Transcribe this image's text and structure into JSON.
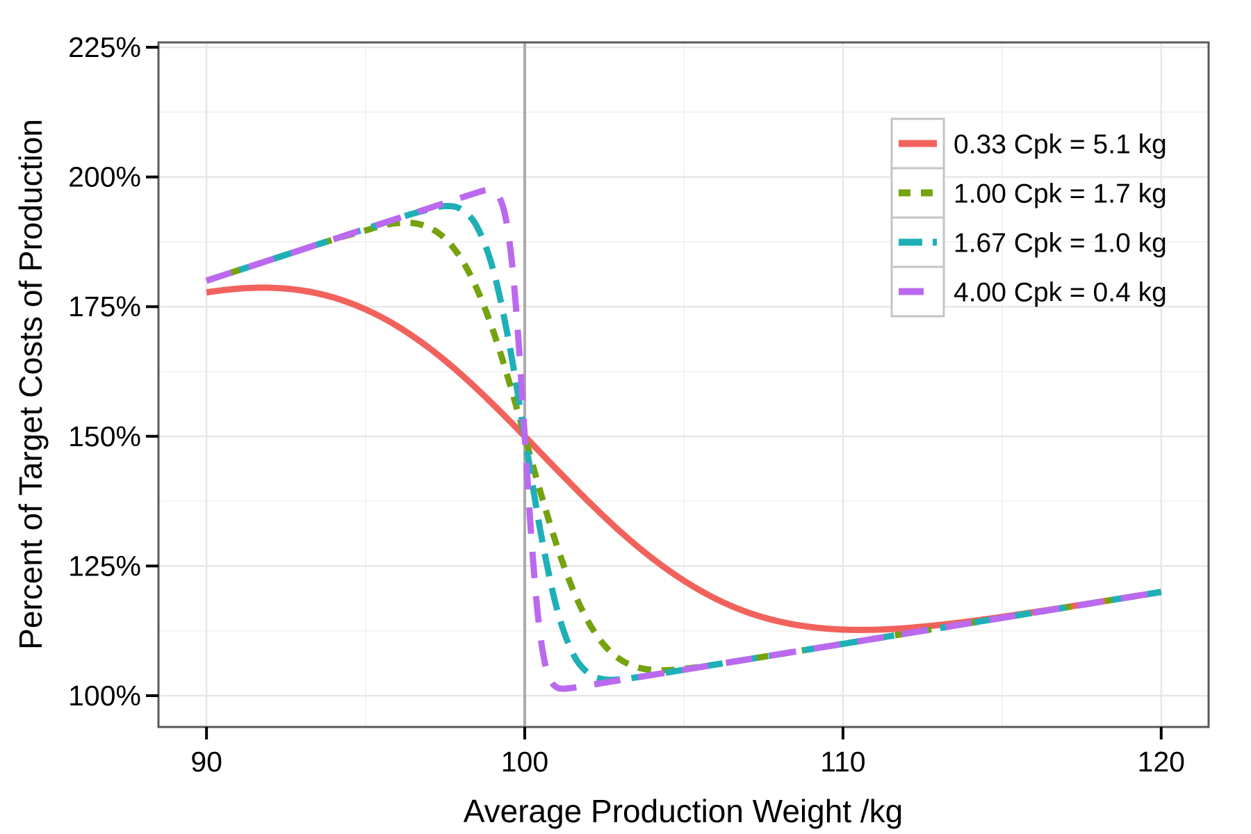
{
  "chart_data": {
    "type": "line",
    "title": "",
    "xlabel": "Average Production Weight /kg",
    "ylabel": "Percent of Target Costs of Production",
    "xlim": [
      88.49,
      121.49
    ],
    "ylim": [
      93.97,
      225.94
    ],
    "x_ticks": [
      {
        "value": 90,
        "label": "90"
      },
      {
        "value": 100,
        "label": "100"
      },
      {
        "value": 110,
        "label": "110"
      },
      {
        "value": 120,
        "label": "120"
      }
    ],
    "y_ticks": [
      {
        "value": 100,
        "label": "100%"
      },
      {
        "value": 125,
        "label": "125%"
      },
      {
        "value": 150,
        "label": "150%"
      },
      {
        "value": 175,
        "label": "175%"
      },
      {
        "value": 200,
        "label": "200%"
      },
      {
        "value": 225,
        "label": "225%"
      }
    ],
    "x_minor": [
      95,
      105,
      115
    ],
    "y_minor": [
      112.5,
      137.5,
      162.5,
      187.5,
      212.5
    ],
    "grid": {
      "major_color": "#e7e7e7",
      "minor_color": "#f3f3f3",
      "major_width": 2.5,
      "minor_width": 2
    },
    "reference_line": {
      "x": 100,
      "color": "#ababab",
      "width": 4
    },
    "panel": {
      "border_color": "#595959",
      "border_width": 3,
      "background": "#ffffff"
    },
    "legend": {
      "position": "top-right-inside",
      "key_fill": "#ffffff",
      "key_border": "#c4c4c4"
    },
    "series": [
      {
        "name": "0.33 Cpk = 5.1 kg",
        "color": "#f2625c",
        "dash": null,
        "points": [
          [
            90,
            177.76
          ],
          [
            91,
            178.47
          ],
          [
            92,
            178.64
          ],
          [
            93,
            178.11
          ],
          [
            94,
            176.75
          ],
          [
            95,
            174.47
          ],
          [
            96,
            171.22
          ],
          [
            97,
            167.01
          ],
          [
            98,
            161.95
          ],
          [
            99,
            156.19
          ],
          [
            100,
            150.0
          ],
          [
            101,
            143.65
          ],
          [
            102,
            137.45
          ],
          [
            103,
            131.65
          ],
          [
            104,
            126.52
          ],
          [
            105,
            122.17
          ],
          [
            106,
            118.69
          ],
          [
            107,
            116.07
          ],
          [
            108,
            114.3
          ],
          [
            109,
            113.23
          ],
          [
            110,
            112.74
          ],
          [
            111,
            112.72
          ],
          [
            112,
            113.04
          ],
          [
            113,
            113.61
          ],
          [
            114,
            114.34
          ],
          [
            115,
            115.19
          ],
          [
            116,
            116.1
          ],
          [
            117,
            117.05
          ],
          [
            118,
            118.03
          ],
          [
            119,
            119.01
          ],
          [
            120,
            120.0
          ]
        ]
      },
      {
        "name": "1.00 Cpk = 1.7 kg",
        "color": "#74a30e",
        "dash": [
          19,
          15
        ],
        "points": [
          [
            90,
            180.0
          ],
          [
            92,
            184.0
          ],
          [
            94,
            187.96
          ],
          [
            95,
            189.69
          ],
          [
            95.5,
            190.61
          ],
          [
            96,
            191.11
          ],
          [
            96.5,
            191.1
          ],
          [
            97,
            190.24
          ],
          [
            97.5,
            188.11
          ],
          [
            98,
            184.27
          ],
          [
            98.5,
            178.4
          ],
          [
            99,
            170.46
          ],
          [
            99.5,
            160.76
          ],
          [
            100,
            150.0
          ],
          [
            100.5,
            139.13
          ],
          [
            101,
            129.1
          ],
          [
            101.5,
            120.67
          ],
          [
            102,
            114.21
          ],
          [
            102.5,
            109.74
          ],
          [
            103,
            106.99
          ],
          [
            103.5,
            105.54
          ],
          [
            104,
            104.97
          ],
          [
            104.5,
            104.92
          ],
          [
            105,
            105.17
          ],
          [
            106,
            106.02
          ],
          [
            108,
            108.0
          ],
          [
            110,
            110.0
          ],
          [
            112,
            112.0
          ],
          [
            115,
            115.0
          ],
          [
            120,
            120.0
          ]
        ]
      },
      {
        "name": "1.67 Cpk = 1.0 kg",
        "color": "#1fb0b7",
        "dash": [
          33,
          17
        ],
        "points": [
          [
            90,
            180.0
          ],
          [
            92,
            184.0
          ],
          [
            94,
            188.0
          ],
          [
            95,
            190.0
          ],
          [
            96,
            191.99
          ],
          [
            96.5,
            192.96
          ],
          [
            97,
            193.74
          ],
          [
            97.5,
            194.39
          ],
          [
            98,
            193.77
          ],
          [
            98.5,
            190.42
          ],
          [
            99,
            182.29
          ],
          [
            99.5,
            168.3
          ],
          [
            100,
            150.0
          ],
          [
            100.5,
            131.51
          ],
          [
            101,
            117.02
          ],
          [
            101.5,
            108.28
          ],
          [
            102,
            104.32
          ],
          [
            102.5,
            103.14
          ],
          [
            103,
            103.14
          ],
          [
            103.5,
            103.52
          ],
          [
            104,
            104.0
          ],
          [
            105,
            105.0
          ],
          [
            106,
            106.0
          ],
          [
            108,
            108.0
          ],
          [
            110,
            110.0
          ],
          [
            115,
            115.0
          ],
          [
            120,
            120.0
          ]
        ]
      },
      {
        "name": "4.00 Cpk = 0.4 kg",
        "color": "#bb69ef",
        "dash": [
          38,
          26
        ],
        "points": [
          [
            90,
            180.0
          ],
          [
            92,
            184.0
          ],
          [
            94,
            188.0
          ],
          [
            96,
            192.0
          ],
          [
            97,
            194.0
          ],
          [
            98,
            196.0
          ],
          [
            98.5,
            196.98
          ],
          [
            98.8,
            197.47
          ],
          [
            99,
            197.39
          ],
          [
            99.2,
            196.14
          ],
          [
            99.4,
            192.16
          ],
          [
            99.6,
            183.4
          ],
          [
            99.8,
            168.81
          ],
          [
            100,
            150.0
          ],
          [
            100.2,
            131.12
          ],
          [
            100.4,
            116.33
          ],
          [
            100.6,
            107.32
          ],
          [
            100.8,
            103.09
          ],
          [
            101,
            101.63
          ],
          [
            101.2,
            101.34
          ],
          [
            101.5,
            101.51
          ],
          [
            102,
            102.0
          ],
          [
            103,
            103.0
          ],
          [
            105,
            105.0
          ],
          [
            108,
            108.0
          ],
          [
            110,
            110.0
          ],
          [
            115,
            115.0
          ],
          [
            120,
            120.0
          ]
        ]
      }
    ]
  },
  "layout_text": {
    "x_axis_title": "Average Production Weight /kg",
    "y_axis_title": "Percent of Target Costs of Production"
  }
}
